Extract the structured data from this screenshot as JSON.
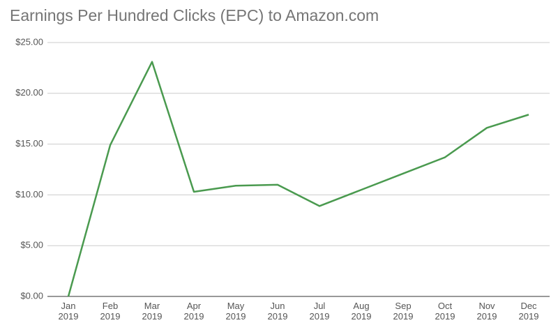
{
  "chart_data": {
    "type": "line",
    "title": "Earnings Per Hundred Clicks (EPC) to Amazon.com",
    "categories": [
      "Jan 2019",
      "Feb 2019",
      "Mar 2019",
      "Apr 2019",
      "May 2019",
      "Jun 2019",
      "Jul 2019",
      "Aug 2019",
      "Sep 2019",
      "Oct 2019",
      "Nov 2019",
      "Dec 2019"
    ],
    "values": [
      0,
      14.9,
      23.1,
      10.3,
      10.9,
      11.0,
      8.9,
      10.5,
      12.1,
      13.7,
      16.6,
      17.9
    ],
    "color": "#4a9a4f",
    "ylim": [
      0,
      25
    ],
    "yticks": [
      {
        "value": 0,
        "label": "$0.00"
      },
      {
        "value": 5,
        "label": "$5.00"
      },
      {
        "value": 10,
        "label": "$10.00"
      },
      {
        "value": 15,
        "label": "$15.00"
      },
      {
        "value": 20,
        "label": "$20.00"
      },
      {
        "value": 25,
        "label": "$25.00"
      }
    ],
    "grid": true
  }
}
